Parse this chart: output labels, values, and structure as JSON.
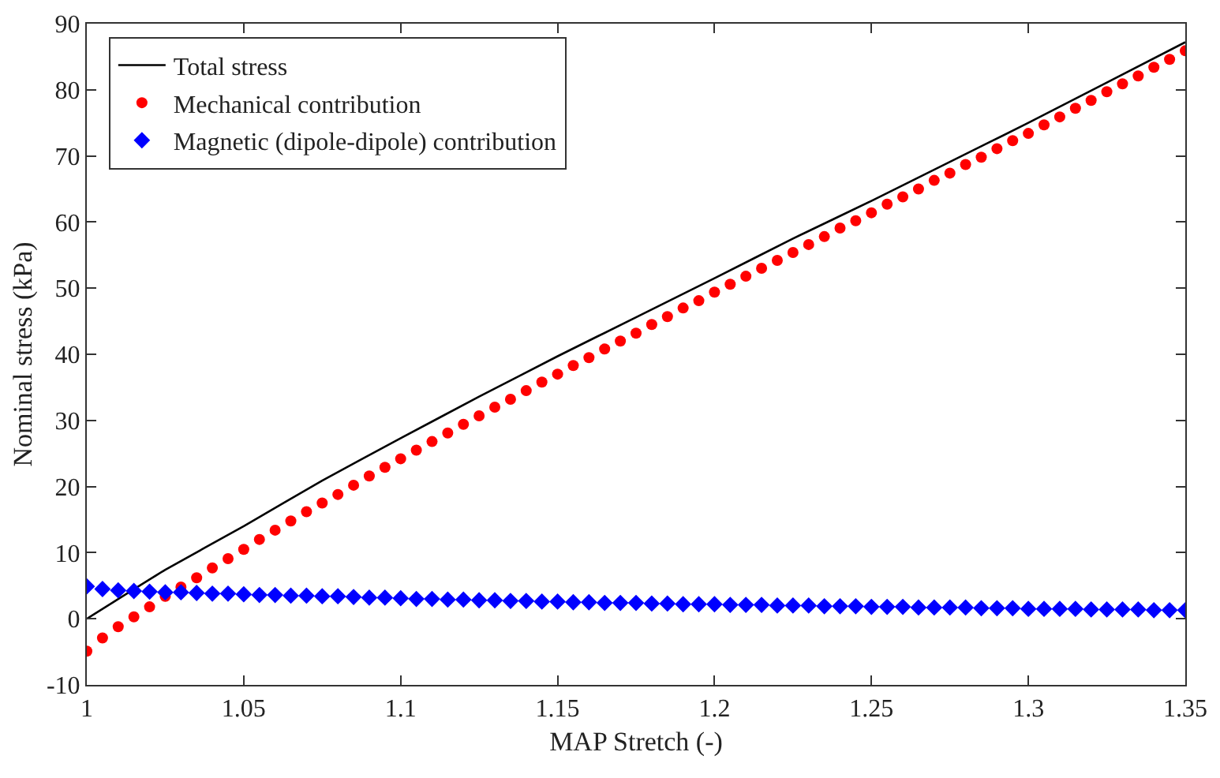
{
  "chart_data": {
    "type": "scatter",
    "xlabel": "MAP Stretch (-)",
    "ylabel": "Nominal stress (kPa)",
    "xlim": [
      1,
      1.35
    ],
    "xticks": [
      1,
      1.05,
      1.1,
      1.15,
      1.2,
      1.25,
      1.3,
      1.35
    ],
    "ylim": [
      -10,
      90
    ],
    "yticks": [
      -10,
      0,
      10,
      20,
      30,
      40,
      50,
      60,
      70,
      80,
      90
    ],
    "legend": "top left",
    "x": [
      1.0,
      1.005,
      1.01,
      1.015,
      1.02,
      1.025,
      1.03,
      1.035,
      1.04,
      1.045,
      1.05,
      1.055,
      1.06,
      1.065,
      1.07,
      1.075,
      1.08,
      1.085,
      1.09,
      1.095,
      1.1,
      1.105,
      1.11,
      1.115,
      1.12,
      1.125,
      1.13,
      1.135,
      1.14,
      1.145,
      1.15,
      1.155,
      1.16,
      1.165,
      1.17,
      1.175,
      1.18,
      1.185,
      1.19,
      1.195,
      1.2,
      1.205,
      1.21,
      1.215,
      1.22,
      1.225,
      1.23,
      1.235,
      1.24,
      1.245,
      1.25,
      1.255,
      1.26,
      1.265,
      1.27,
      1.275,
      1.28,
      1.285,
      1.29,
      1.295,
      1.3,
      1.305,
      1.31,
      1.315,
      1.32,
      1.325,
      1.33,
      1.335,
      1.34,
      1.345,
      1.35
    ],
    "series": [
      {
        "name": "Total stress",
        "type": "line",
        "color": "#000000",
        "marker": "none",
        "line_style": "solid",
        "x": [
          1.0,
          1.025,
          1.05,
          1.075,
          1.1,
          1.125,
          1.15,
          1.175,
          1.2,
          1.225,
          1.25,
          1.275,
          1.3,
          1.325,
          1.35
        ],
        "values": [
          0,
          7.4,
          14.0,
          20.9,
          27.3,
          33.6,
          39.7,
          45.6,
          51.5,
          57.5,
          63.2,
          69.1,
          75.0,
          81.1,
          87.2
        ]
      },
      {
        "name": "Mechanical contribution",
        "color": "#ff0000",
        "marker": "circle",
        "values": [
          -4.9,
          -2.9,
          -1.2,
          0.3,
          1.8,
          3.4,
          4.8,
          6.2,
          7.7,
          9.1,
          10.5,
          12.0,
          13.4,
          14.8,
          16.2,
          17.5,
          18.8,
          20.2,
          21.6,
          22.9,
          24.2,
          25.5,
          26.8,
          28.1,
          29.4,
          30.7,
          32.0,
          33.2,
          34.5,
          35.8,
          37.0,
          38.3,
          39.5,
          40.8,
          42.0,
          43.2,
          44.5,
          45.7,
          47.0,
          48.1,
          49.4,
          50.6,
          51.8,
          53.0,
          54.2,
          55.4,
          56.6,
          57.8,
          59.1,
          60.2,
          61.4,
          62.7,
          63.8,
          65.0,
          66.3,
          67.4,
          68.7,
          69.8,
          71.1,
          72.3,
          73.4,
          74.7,
          75.9,
          77.2,
          78.4,
          79.7,
          80.9,
          82.1,
          83.4,
          84.6,
          85.9
        ]
      },
      {
        "name": "Magnetic (dipole-dipole) contribution",
        "color": "#0000ff",
        "marker": "diamond",
        "values": [
          4.9,
          4.5,
          4.3,
          4.2,
          4.1,
          4.0,
          4.0,
          3.9,
          3.8,
          3.8,
          3.7,
          3.6,
          3.6,
          3.5,
          3.5,
          3.4,
          3.4,
          3.3,
          3.2,
          3.2,
          3.1,
          3.0,
          3.0,
          2.9,
          2.9,
          2.8,
          2.8,
          2.7,
          2.7,
          2.6,
          2.6,
          2.5,
          2.5,
          2.4,
          2.4,
          2.4,
          2.3,
          2.3,
          2.2,
          2.2,
          2.2,
          2.1,
          2.1,
          2.1,
          2.0,
          2.0,
          2.0,
          1.9,
          1.9,
          1.9,
          1.8,
          1.8,
          1.8,
          1.7,
          1.7,
          1.7,
          1.7,
          1.6,
          1.6,
          1.6,
          1.5,
          1.5,
          1.5,
          1.5,
          1.4,
          1.4,
          1.4,
          1.4,
          1.3,
          1.3,
          1.3
        ]
      }
    ]
  }
}
